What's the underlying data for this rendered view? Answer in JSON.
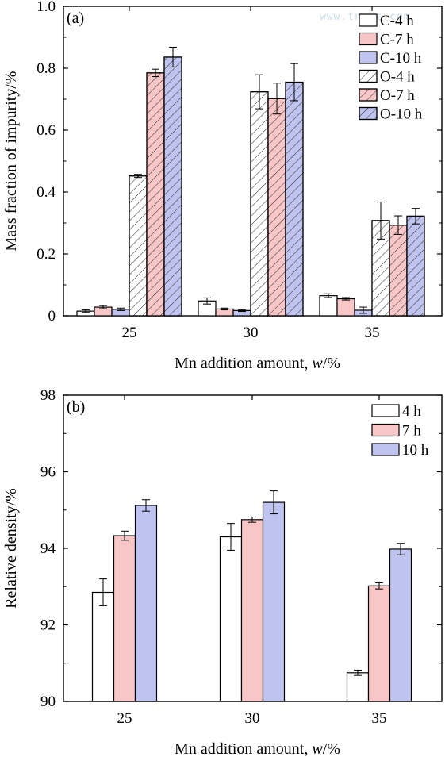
{
  "watermark": "www.tnmsc.com",
  "colors": {
    "c4": "#ffffff",
    "c7": "#f8c6c6",
    "c10": "#bfc3f0",
    "axis": "#000000",
    "hatch": "#333333"
  },
  "chart_data": [
    {
      "panel_label": "(a)",
      "type": "bar",
      "xlabel_prefix": "Mn addition amount, ",
      "xlabel_italic": "w",
      "xlabel_suffix": "/%",
      "ylabel": "Mass fraction of impurity/%",
      "ylim": [
        0,
        1.0
      ],
      "yticks": [
        "0",
        "0.2",
        "0.4",
        "0.6",
        "0.8",
        "1.0"
      ],
      "categories": [
        "25",
        "30",
        "35"
      ],
      "legend_placement": "top-right",
      "series": [
        {
          "name": "C-4 h",
          "color": "c4",
          "hatched": false,
          "values": [
            0.015,
            0.048,
            0.065
          ],
          "errors": [
            0.004,
            0.01,
            0.006
          ]
        },
        {
          "name": "C-7 h",
          "color": "c7",
          "hatched": false,
          "values": [
            0.028,
            0.022,
            0.055
          ],
          "errors": [
            0.005,
            0.003,
            0.004
          ]
        },
        {
          "name": "C-10 h",
          "color": "c10",
          "hatched": false,
          "values": [
            0.021,
            0.017,
            0.018
          ],
          "errors": [
            0.004,
            0.003,
            0.01
          ]
        },
        {
          "name": "O-4 h",
          "color": "c4",
          "hatched": true,
          "values": [
            0.452,
            0.724,
            0.308
          ],
          "errors": [
            0.005,
            0.055,
            0.06
          ]
        },
        {
          "name": "O-7 h",
          "color": "c7",
          "hatched": true,
          "values": [
            0.785,
            0.702,
            0.293
          ],
          "errors": [
            0.012,
            0.05,
            0.03
          ]
        },
        {
          "name": "O-10 h",
          "color": "c10",
          "hatched": true,
          "values": [
            0.836,
            0.755,
            0.322
          ],
          "errors": [
            0.032,
            0.06,
            0.025
          ]
        }
      ]
    },
    {
      "panel_label": "(b)",
      "type": "bar",
      "xlabel_prefix": "Mn addition amount, ",
      "xlabel_italic": "w",
      "xlabel_suffix": "/%",
      "ylabel": "Relative density/%",
      "ylim": [
        90,
        98
      ],
      "yticks": [
        "90",
        "92",
        "94",
        "96",
        "98"
      ],
      "categories": [
        "25",
        "30",
        "35"
      ],
      "legend_placement": "top-right",
      "series": [
        {
          "name": "4 h",
          "color": "c4",
          "hatched": false,
          "values": [
            92.85,
            94.3,
            90.75
          ],
          "errors": [
            0.35,
            0.35,
            0.07
          ]
        },
        {
          "name": "7 h",
          "color": "c7",
          "hatched": false,
          "values": [
            94.33,
            94.75,
            93.02
          ],
          "errors": [
            0.12,
            0.07,
            0.08
          ]
        },
        {
          "name": "10 h",
          "color": "c10",
          "hatched": false,
          "values": [
            95.12,
            95.2,
            93.98
          ],
          "errors": [
            0.15,
            0.3,
            0.15
          ]
        }
      ]
    }
  ]
}
